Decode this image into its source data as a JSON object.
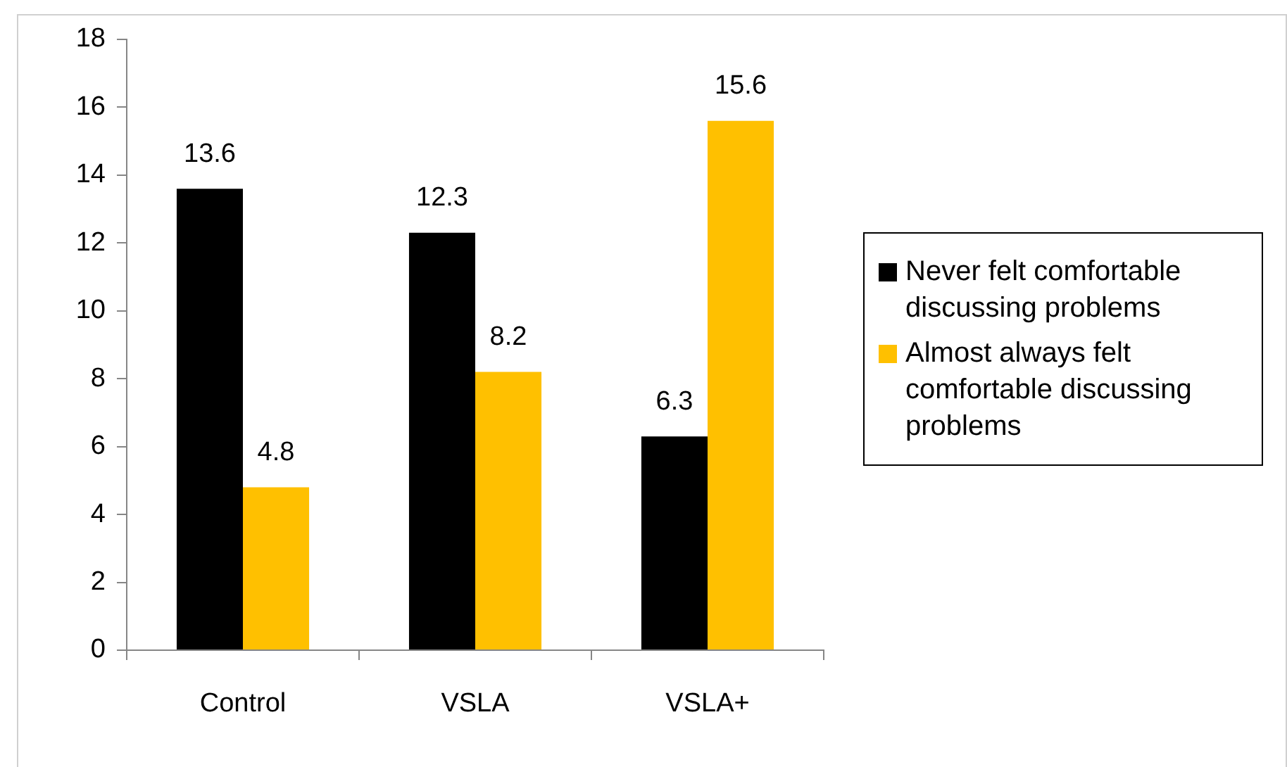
{
  "chart_data": {
    "type": "bar",
    "categories": [
      "Control",
      "VSLA",
      "VSLA+"
    ],
    "series": [
      {
        "name": "Never felt comfortable discussing problems",
        "color": "#000000",
        "values": [
          13.6,
          12.3,
          6.3
        ]
      },
      {
        "name": "Almost always felt comfortable discussing problems",
        "color": "#ffc000",
        "values": [
          4.8,
          8.2,
          15.6
        ]
      }
    ],
    "ylim": [
      0,
      18
    ],
    "yticks": [
      0,
      2,
      4,
      6,
      8,
      10,
      12,
      14,
      16,
      18
    ],
    "grid": false,
    "legend": "right",
    "data_labels": true
  }
}
